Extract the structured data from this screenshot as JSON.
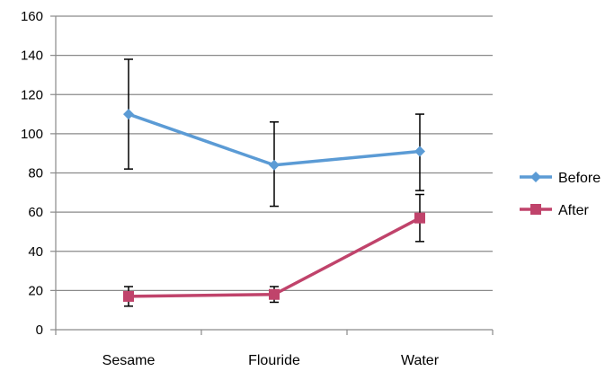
{
  "chart_data": {
    "type": "line",
    "categories": [
      "Sesame",
      "Flouride",
      "Water"
    ],
    "ylim": [
      0,
      160
    ],
    "yticks": [
      0,
      20,
      40,
      60,
      80,
      100,
      120,
      140,
      160
    ],
    "grid": true,
    "legend_position": "right",
    "series": [
      {
        "name": "Before",
        "color": "#5b9bd5",
        "marker": "diamond",
        "values": [
          110,
          84,
          91
        ],
        "error_low": [
          82,
          63,
          71
        ],
        "error_high": [
          138,
          106,
          110
        ]
      },
      {
        "name": "After",
        "color": "#c0436b",
        "marker": "square",
        "values": [
          17,
          18,
          57
        ],
        "error_low": [
          12,
          14,
          45
        ],
        "error_high": [
          22,
          22,
          69
        ]
      }
    ],
    "title": "",
    "xlabel": "",
    "ylabel": ""
  }
}
